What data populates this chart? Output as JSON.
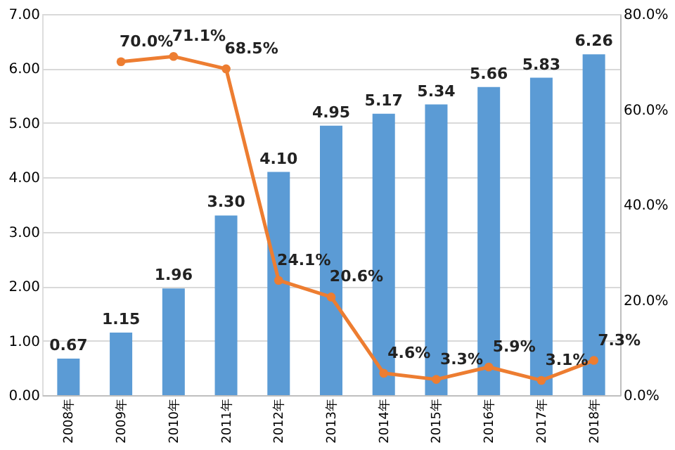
{
  "chart_data": {
    "type": "bar",
    "categories": [
      "2008年",
      "2009年",
      "2010年",
      "2011年",
      "2012年",
      "2013年",
      "2014年",
      "2015年",
      "2016年",
      "2017年",
      "2018年"
    ],
    "series": [
      {
        "color": "#5b9bd5",
        "values": [
          0.67,
          1.15,
          1.96,
          3.3,
          4.1,
          4.95,
          5.17,
          5.34,
          5.66,
          5.83,
          6.26
        ],
        "value_labels": [
          "0.67",
          "1.15",
          "1.96",
          "3.30",
          "4.10",
          "4.95",
          "5.17",
          "5.34",
          "5.66",
          "5.83",
          "6.26"
        ]
      },
      {
        "type": "line",
        "axis": "y2",
        "color": "#ed7d31",
        "marker": "circle",
        "values": [
          null,
          70.0,
          71.1,
          68.5,
          24.1,
          20.6,
          4.6,
          3.3,
          5.9,
          3.1,
          7.3
        ],
        "value_labels": [
          null,
          "70.0%",
          "71.1%",
          "68.5%",
          "24.1%",
          "20.6%",
          "4.6%",
          "3.3%",
          "5.9%",
          "3.1%",
          "7.3%"
        ]
      }
    ],
    "ylim": [
      0,
      7
    ],
    "yticks": [
      {
        "value": 0,
        "label": "0.00"
      },
      {
        "value": 1,
        "label": "1.00"
      },
      {
        "value": 2,
        "label": "2.00"
      },
      {
        "value": 3,
        "label": "3.00"
      },
      {
        "value": 4,
        "label": "4.00"
      },
      {
        "value": 5,
        "label": "5.00"
      },
      {
        "value": 6,
        "label": "6.00"
      },
      {
        "value": 7,
        "label": "7.00"
      }
    ],
    "y2lim": [
      0,
      80
    ],
    "y2ticks": [
      {
        "value": 0,
        "label": "0.0%"
      },
      {
        "value": 20,
        "label": "20.0%"
      },
      {
        "value": 40,
        "label": "40.0%"
      },
      {
        "value": 60,
        "label": "60.0%"
      },
      {
        "value": 80,
        "label": "80.0%"
      }
    ],
    "grid": "y"
  }
}
